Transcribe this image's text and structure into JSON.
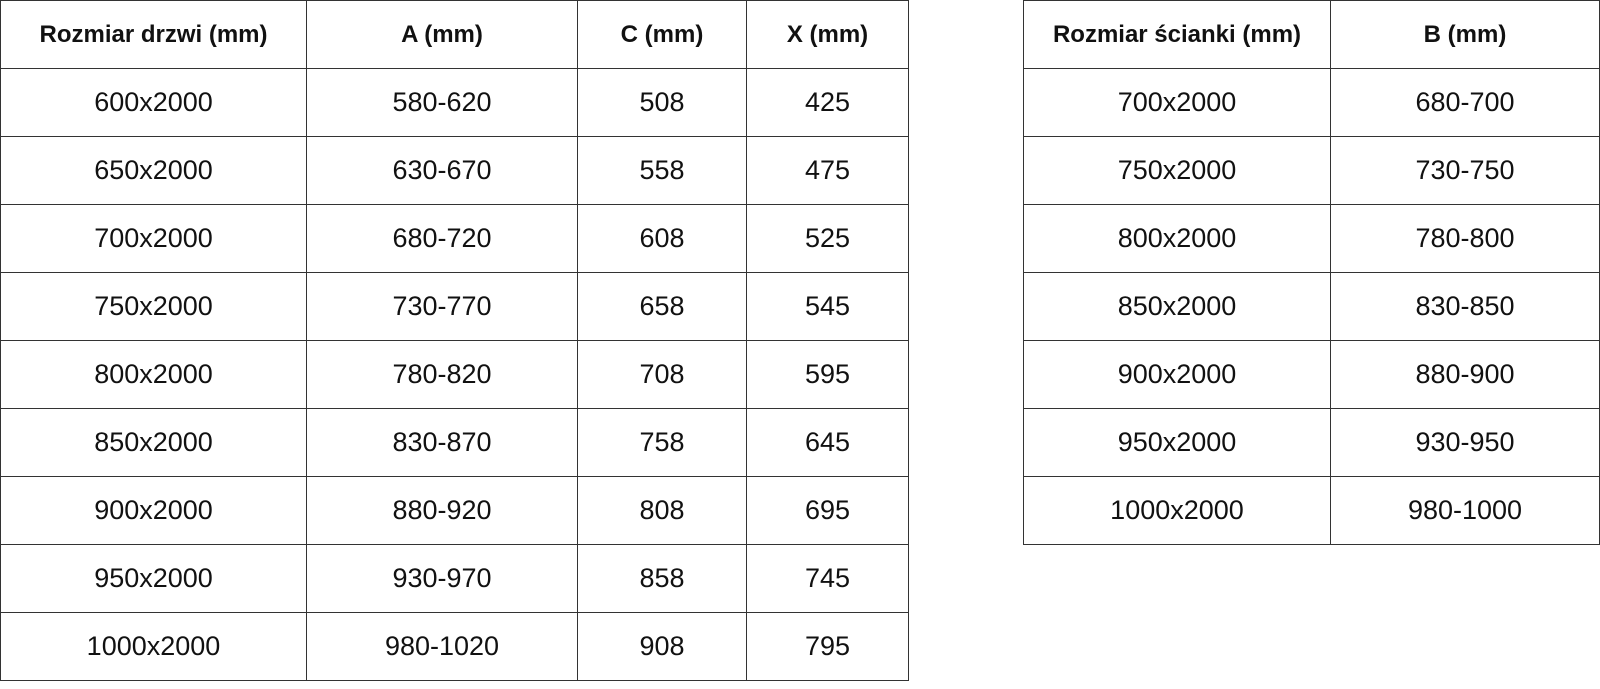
{
  "door_table": {
    "headers": [
      "Rozmiar drzwi (mm)",
      "A (mm)",
      "C (mm)",
      "X (mm)"
    ],
    "rows": [
      [
        "600x2000",
        "580-620",
        "508",
        "425"
      ],
      [
        "650x2000",
        "630-670",
        "558",
        "475"
      ],
      [
        "700x2000",
        "680-720",
        "608",
        "525"
      ],
      [
        "750x2000",
        "730-770",
        "658",
        "545"
      ],
      [
        "800x2000",
        "780-820",
        "708",
        "595"
      ],
      [
        "850x2000",
        "830-870",
        "758",
        "645"
      ],
      [
        "900x2000",
        "880-920",
        "808",
        "695"
      ],
      [
        "950x2000",
        "930-970",
        "858",
        "745"
      ],
      [
        "1000x2000",
        "980-1020",
        "908",
        "795"
      ]
    ]
  },
  "wall_table": {
    "headers": [
      "Rozmiar ścianki (mm)",
      "B (mm)"
    ],
    "rows": [
      [
        "700x2000",
        "680-700"
      ],
      [
        "750x2000",
        "730-750"
      ],
      [
        "800x2000",
        "780-800"
      ],
      [
        "850x2000",
        "830-850"
      ],
      [
        "900x2000",
        "880-900"
      ],
      [
        "950x2000",
        "930-950"
      ],
      [
        "1000x2000",
        "980-1000"
      ]
    ]
  }
}
